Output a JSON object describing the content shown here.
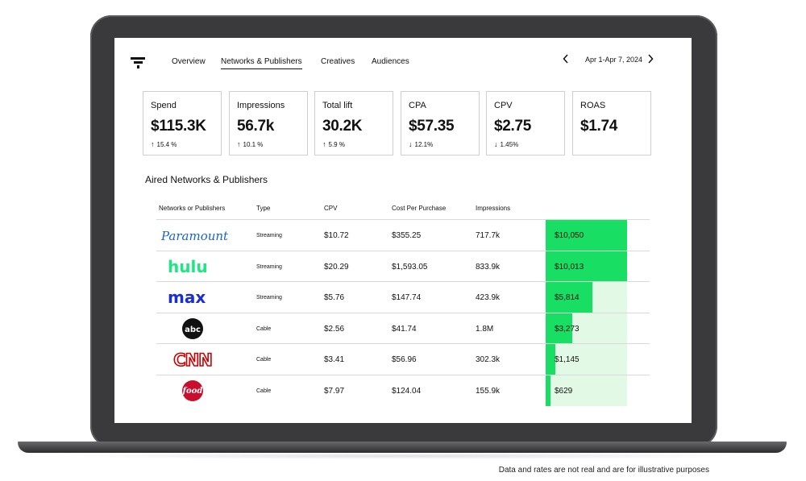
{
  "nav": {
    "tabs": [
      {
        "label": "Overview",
        "active": false
      },
      {
        "label": "Networks & Publishers",
        "active": true
      },
      {
        "label": "Creatives",
        "active": false
      },
      {
        "label": "Audiences",
        "active": false
      }
    ],
    "date_range": "Apr 1-Apr 7, 2024",
    "prev_icon": "chevron-left-icon",
    "next_icon": "chevron-right-icon"
  },
  "kpis": [
    {
      "label": "Spend",
      "value": "$115.3K",
      "direction": "up",
      "change": "15.4 %"
    },
    {
      "label": "Impressions",
      "value": "56.7k",
      "direction": "up",
      "change": "10.1 %"
    },
    {
      "label": "Total lift",
      "value": "30.2K",
      "direction": "up",
      "change": "5.9 %"
    },
    {
      "label": "CPA",
      "value": "$57.35",
      "direction": "down",
      "change": "12.1%"
    },
    {
      "label": "CPV",
      "value": "$2.75",
      "direction": "down",
      "change": "1.45%"
    },
    {
      "label": "ROAS",
      "value": "$1.74",
      "direction": "",
      "change": ""
    }
  ],
  "section_title": "Aired Networks & Publishers",
  "table": {
    "headers": [
      "Networks or Publishers",
      "Type",
      "CPV",
      "Cost Per Purchase",
      "Impressions"
    ],
    "max_spend": 10050,
    "rows": [
      {
        "network": "Paramount+",
        "logo_icon": "paramount-plus-logo",
        "type": "Streaming",
        "cpv": "$10.72",
        "cpp": "$355.25",
        "impressions": "717.7k",
        "spend": "$10,050",
        "spend_value": 10050
      },
      {
        "network": "hulu",
        "logo_icon": "hulu-logo",
        "type": "Streaming",
        "cpv": "$20.29",
        "cpp": "$1,593.05",
        "impressions": "833.9k",
        "spend": "$10,013",
        "spend_value": 10013
      },
      {
        "network": "max",
        "logo_icon": "max-logo",
        "type": "Streaming",
        "cpv": "$5.76",
        "cpp": "$147.74",
        "impressions": "423.9k",
        "spend": "$5,814",
        "spend_value": 5814
      },
      {
        "network": "abc",
        "logo_icon": "abc-logo",
        "type": "Cable",
        "cpv": "$2.56",
        "cpp": "$41.74",
        "impressions": "1.8M",
        "spend": "$3,273",
        "spend_value": 3273
      },
      {
        "network": "CNN",
        "logo_icon": "cnn-logo",
        "type": "Cable",
        "cpv": "$3.41",
        "cpp": "$56.96",
        "impressions": "302.3k",
        "spend": "$1,145",
        "spend_value": 1145
      },
      {
        "network": "food",
        "logo_icon": "food-network-logo",
        "type": "Cable",
        "cpv": "$7.97",
        "cpp": "$124.04",
        "impressions": "155.9k",
        "spend": "$629",
        "spend_value": 629
      }
    ]
  },
  "colors": {
    "bar_fill": "#18de63",
    "bar_track": "#e1f9e5",
    "paramount_blue": "#1a63d6",
    "hulu_green": "#1ce783",
    "max_blue": "#1a2ed6",
    "cnn_red": "#cc0000",
    "food_red": "#c8102e"
  },
  "disclaimer": "Data and rates are not real and are for illustrative purposes"
}
